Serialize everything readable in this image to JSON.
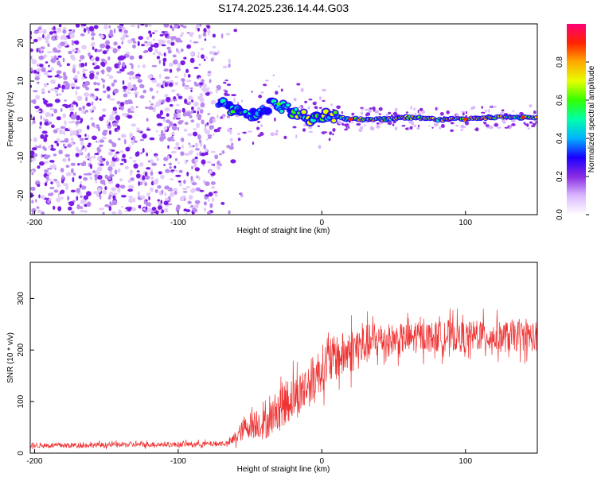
{
  "title": "S174.2025.236.14.44.G03",
  "colors": {
    "snr_line": "#ee3333",
    "noise_speckle": "#7b1ce6",
    "axis": "#000000",
    "colormap": [
      "#ffffff",
      "#d9b8ff",
      "#8a2be2",
      "#1a00ff",
      "#00b3ff",
      "#00ffaa",
      "#33ff00",
      "#e6ff00",
      "#ffaa00",
      "#ff2200",
      "#ff0077"
    ]
  },
  "chart_data": [
    {
      "type": "heatmap",
      "name": "spectrogram",
      "xlabel": "Height of straight line (km)",
      "ylabel": "Frequency (Hz)",
      "xlim": [
        -203,
        150
      ],
      "ylim": [
        -25,
        25
      ],
      "xticks": [
        -200,
        -100,
        0,
        100
      ],
      "yticks": [
        -20,
        -10,
        0,
        10,
        20
      ],
      "xtick_labels": [
        "-200",
        "-100",
        "0",
        "100"
      ],
      "ytick_labels": [
        "-20",
        "-10",
        "0",
        "10",
        "20"
      ],
      "noise_region_x": [
        -203,
        -75
      ],
      "signal_track": {
        "x": [
          -72,
          -65,
          -55,
          -45,
          -35,
          -25,
          -15,
          -5,
          5,
          20,
          40,
          60,
          80,
          100,
          120,
          150
        ],
        "freq": [
          4,
          3,
          2,
          1,
          4,
          3,
          1,
          0,
          1,
          0,
          0,
          0.5,
          0,
          0,
          0.5,
          0.5
        ]
      },
      "colorbar": {
        "label": "Normalized spectral amplitude",
        "range": [
          0.0,
          1.0
        ],
        "ticks": [
          "0.0",
          "0.2",
          "0.4",
          "0.6",
          "0.8"
        ]
      }
    },
    {
      "type": "line",
      "name": "snr",
      "xlabel": "Height of straight line (km)",
      "ylabel": "SNR (10 * v/v)",
      "xlim": [
        -203,
        150
      ],
      "ylim": [
        0,
        370
      ],
      "xticks": [
        -200,
        -100,
        0,
        100
      ],
      "yticks": [
        0,
        100,
        200,
        300
      ],
      "xtick_labels": [
        "-200",
        "-100",
        "0",
        "100"
      ],
      "ytick_labels": [
        "0",
        "100",
        "200",
        "300"
      ],
      "series": [
        {
          "name": "SNR",
          "x": [
            -203,
            -180,
            -150,
            -120,
            -100,
            -80,
            -65,
            -60,
            -55,
            -50,
            -45,
            -40,
            -35,
            -30,
            -25,
            -20,
            -15,
            -10,
            -5,
            0,
            5,
            10,
            15,
            20,
            25,
            30,
            35,
            40,
            50,
            60,
            70,
            80,
            90,
            100,
            110,
            120,
            130,
            140,
            150
          ],
          "mean": [
            15,
            15,
            16,
            17,
            17,
            18,
            19,
            30,
            45,
            55,
            60,
            55,
            70,
            90,
            100,
            110,
            115,
            130,
            150,
            165,
            175,
            185,
            190,
            200,
            205,
            210,
            215,
            220,
            220,
            222,
            225,
            225,
            228,
            225,
            228,
            225,
            225,
            228,
            225
          ],
          "spread": [
            10,
            10,
            10,
            10,
            10,
            10,
            10,
            30,
            40,
            50,
            60,
            60,
            70,
            80,
            90,
            90,
            90,
            90,
            90,
            90,
            90,
            90,
            90,
            90,
            90,
            80,
            70,
            70,
            60,
            60,
            60,
            60,
            60,
            60,
            60,
            60,
            60,
            60,
            60
          ]
        }
      ]
    }
  ]
}
